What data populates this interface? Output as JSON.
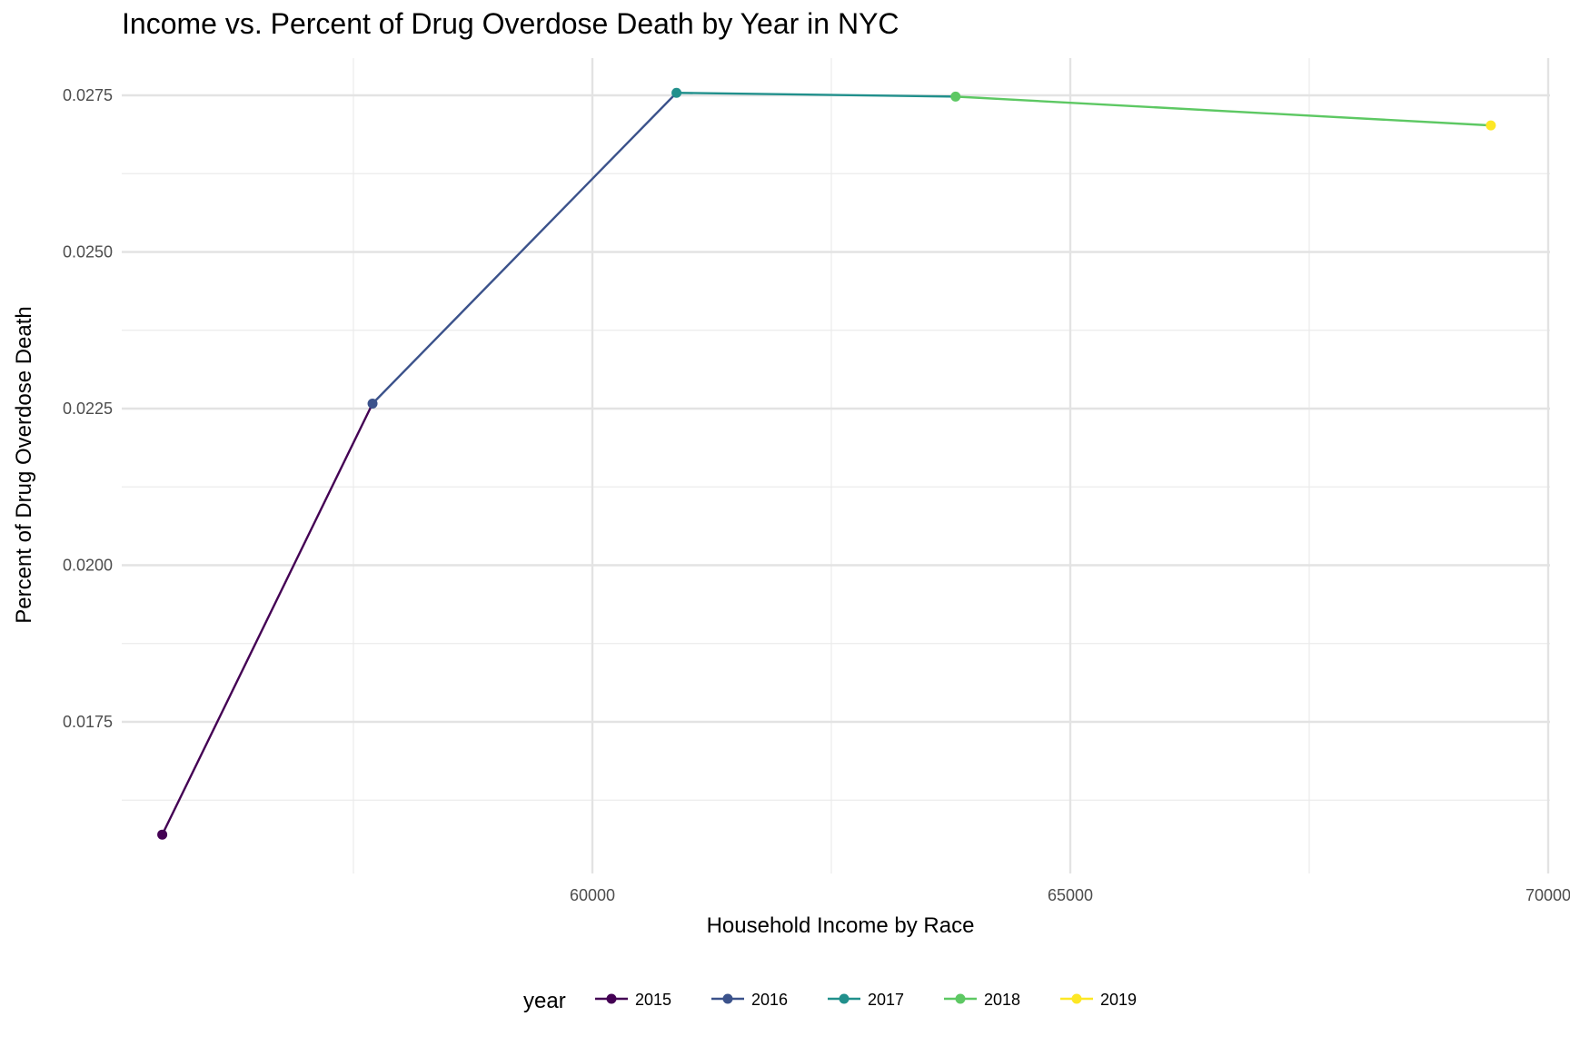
{
  "chart_data": {
    "type": "line",
    "title": "Income vs. Percent of Drug Overdose Death by Year in NYC",
    "xlabel": "Household Income by Race",
    "ylabel": "Percent of Drug Overdose Death",
    "xlim": [
      55000,
      70000
    ],
    "ylim": [
      0.0152,
      0.028
    ],
    "x_ticks": [
      60000,
      65000,
      70000
    ],
    "x_tick_labels": [
      "60000",
      "65000",
      "70000"
    ],
    "y_ticks": [
      0.0175,
      0.02,
      0.0225,
      0.025,
      0.0275
    ],
    "y_tick_labels": [
      "0.0175",
      "0.0200",
      "0.0225",
      "0.0250",
      "0.0275"
    ],
    "grid": true,
    "legend_position": "bottom",
    "legend_title": "year",
    "series": [
      {
        "name": "2015",
        "color": "#440154",
        "x": [
          55500,
          57700
        ],
        "y": [
          0.0157,
          0.02258
        ]
      },
      {
        "name": "2016",
        "color": "#3B528B",
        "x": [
          57700,
          60880
        ],
        "y": [
          0.02258,
          0.02754
        ]
      },
      {
        "name": "2017",
        "color": "#21908C",
        "x": [
          60880,
          63800
        ],
        "y": [
          0.02754,
          0.02748
        ]
      },
      {
        "name": "2018",
        "color": "#5DC863",
        "x": [
          63800,
          69400
        ],
        "y": [
          0.02748,
          0.02702
        ]
      },
      {
        "name": "2019",
        "color": "#FDE725",
        "x": [
          69400
        ],
        "y": [
          0.02702
        ]
      }
    ]
  }
}
